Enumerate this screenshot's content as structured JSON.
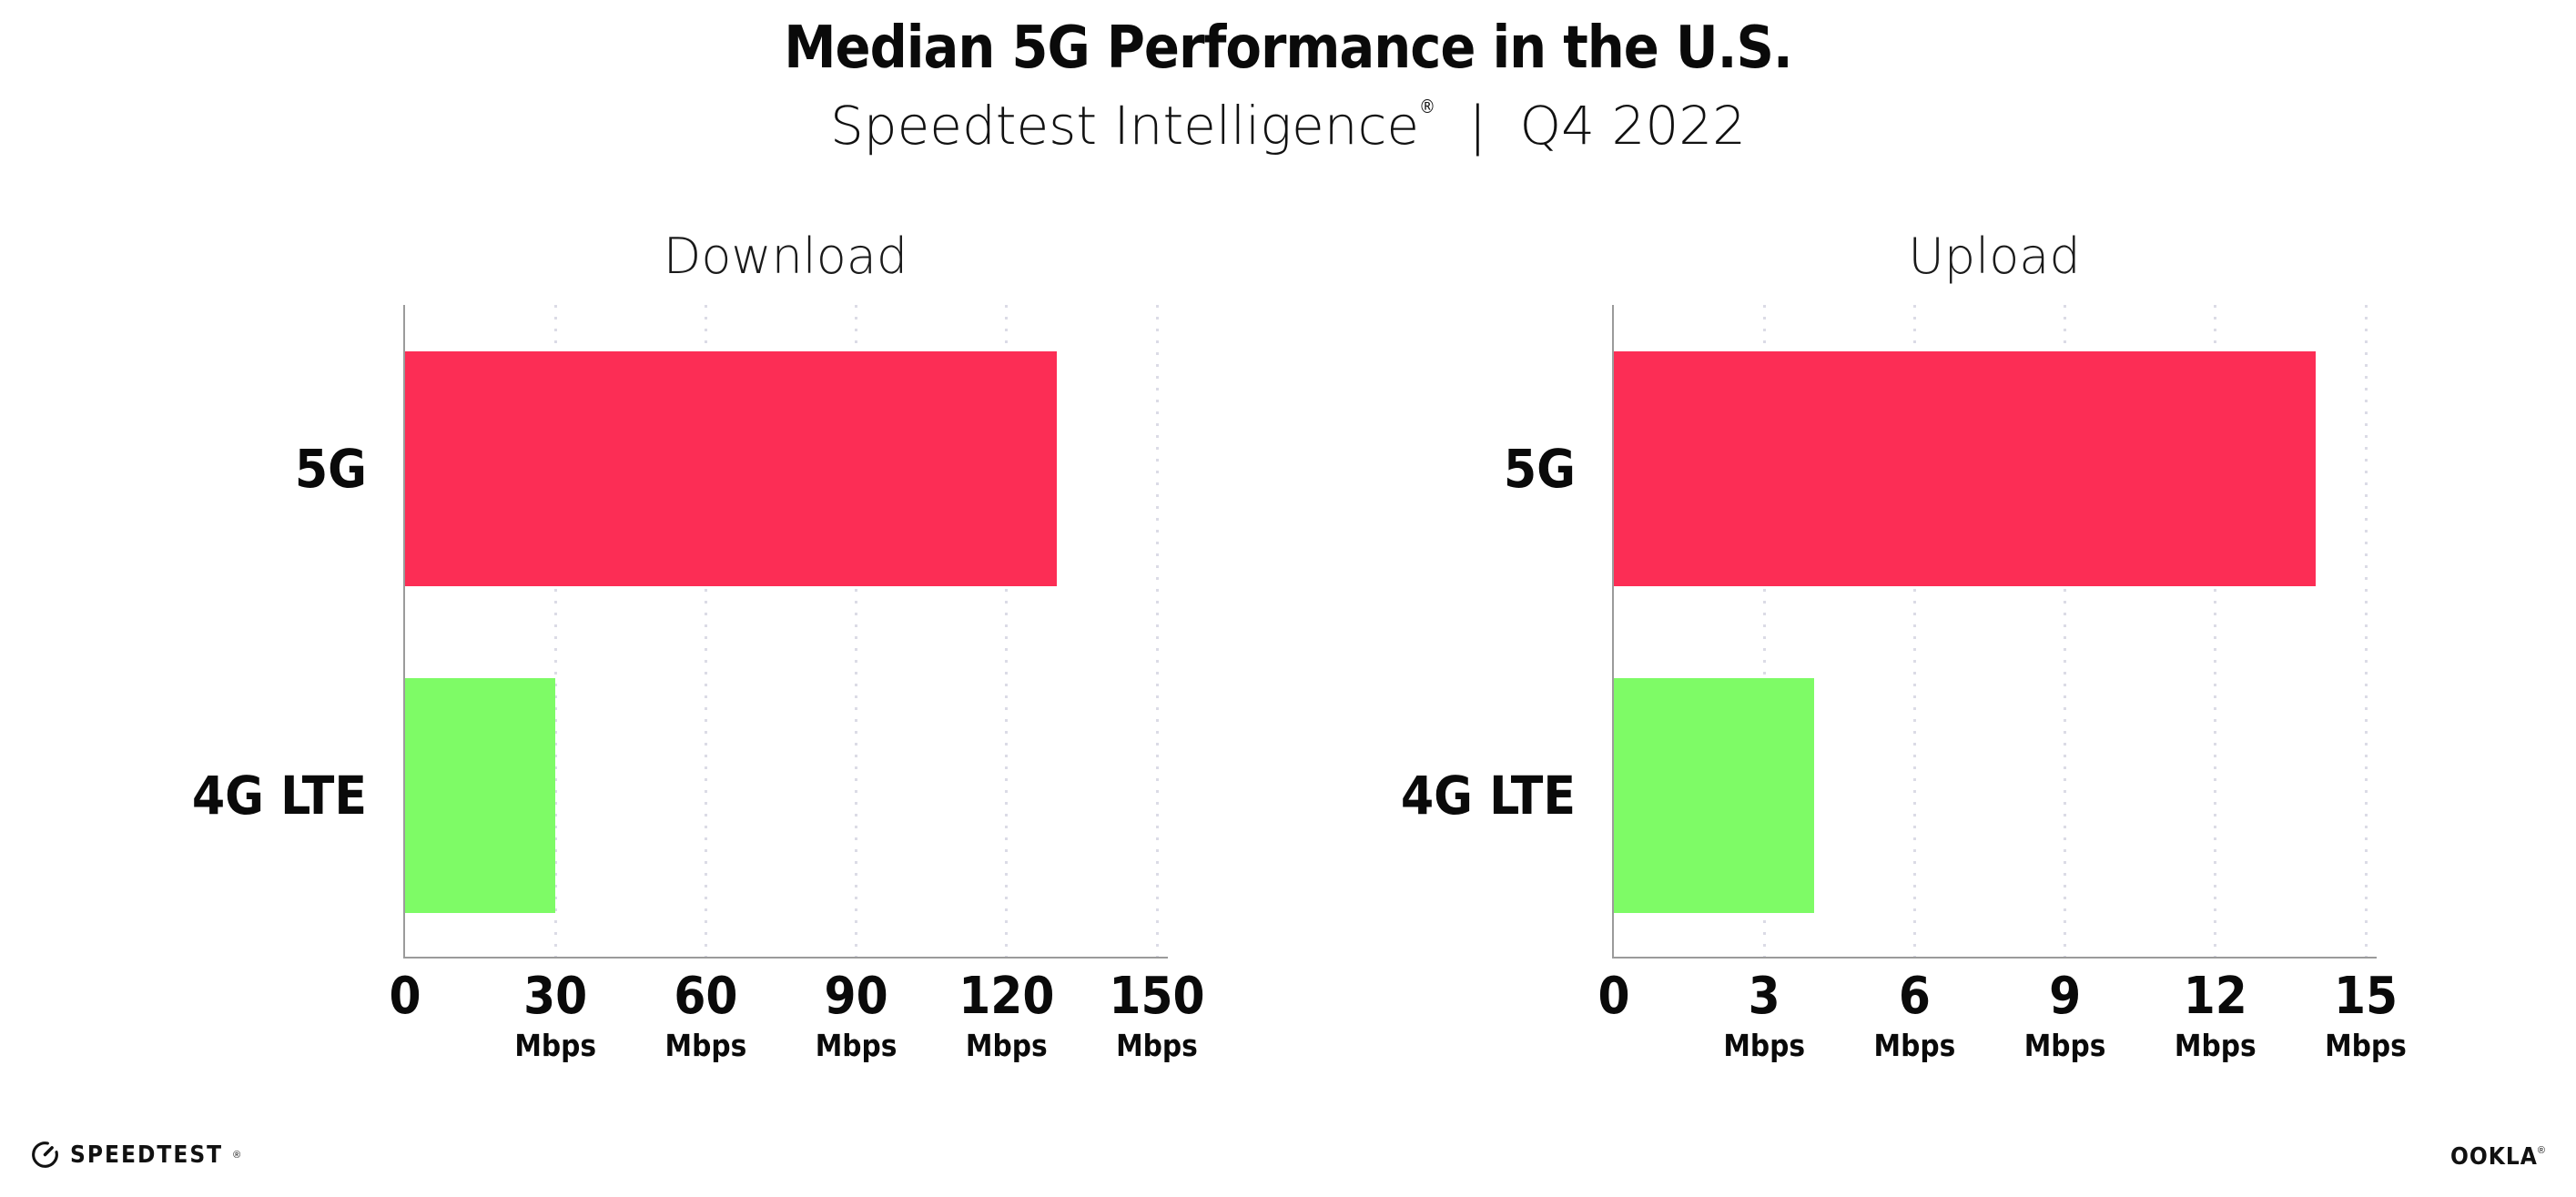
{
  "header": {
    "title": "Median 5G Performance in the U.S.",
    "subtitle_brand": "Speedtest Intelligence",
    "subtitle_reg": "®",
    "subtitle_divider": "|",
    "subtitle_period": "Q4 2022"
  },
  "chart_data": [
    {
      "type": "bar",
      "orientation": "horizontal",
      "title": "Download",
      "categories": [
        "5G",
        "4G LTE"
      ],
      "values": [
        130,
        30
      ],
      "value_unit": "Mbps",
      "xticks": [
        0,
        30,
        60,
        90,
        120,
        150
      ],
      "xtick_unit": "Mbps",
      "xlim": [
        0,
        152.5
      ],
      "bar_colors": [
        "#FC2D55",
        "#7EFB66"
      ],
      "grid": "vertical-dotted",
      "legend": "none"
    },
    {
      "type": "bar",
      "orientation": "horizontal",
      "title": "Upload",
      "categories": [
        "5G",
        "4G LTE"
      ],
      "values": [
        14,
        4
      ],
      "value_unit": "Mbps",
      "xticks": [
        0,
        3,
        6,
        9,
        12,
        15
      ],
      "xtick_unit": "Mbps",
      "xlim": [
        0,
        15.25
      ],
      "bar_colors": [
        "#FC2D55",
        "#7EFB66"
      ],
      "grid": "vertical-dotted",
      "legend": "none"
    }
  ],
  "colors": {
    "bar_red": "#FC2D55",
    "bar_green": "#7EFB66",
    "axis": "#9B9B9B",
    "gridline": "#DBDBE6",
    "text": "#0D0D0D"
  },
  "footer": {
    "speedtest_label": "SPEEDTEST",
    "speedtest_reg": "®",
    "ookla_label": "OOKLA",
    "ookla_reg": "®"
  }
}
